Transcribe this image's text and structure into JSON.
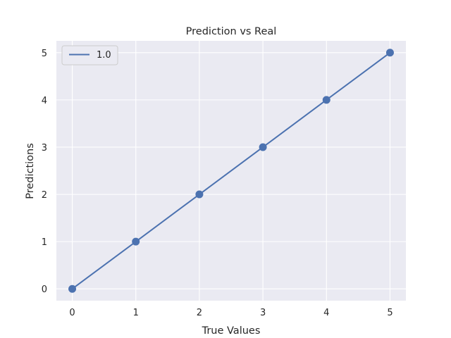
{
  "chart_data": {
    "type": "line",
    "title": "Prediction vs Real",
    "xlabel": "True Values",
    "ylabel": "Predictions",
    "xlim": [
      -0.25,
      5.25
    ],
    "ylim": [
      -0.25,
      5.25
    ],
    "xticks": [
      "0",
      "1",
      "2",
      "3",
      "4",
      "5"
    ],
    "yticks": [
      "0",
      "1",
      "2",
      "3",
      "4",
      "5"
    ],
    "grid": true,
    "legend_position": "top-left",
    "series": [
      {
        "name": "1.0",
        "color": "#4c72b0",
        "markers": true,
        "x": [
          0,
          1,
          2,
          3,
          4,
          5
        ],
        "y": [
          0,
          1,
          2,
          3,
          4,
          5
        ]
      }
    ]
  },
  "colors": {
    "plot_background": "#eaeaf2",
    "grid": "#ffffff",
    "series": "#4c72b0"
  }
}
